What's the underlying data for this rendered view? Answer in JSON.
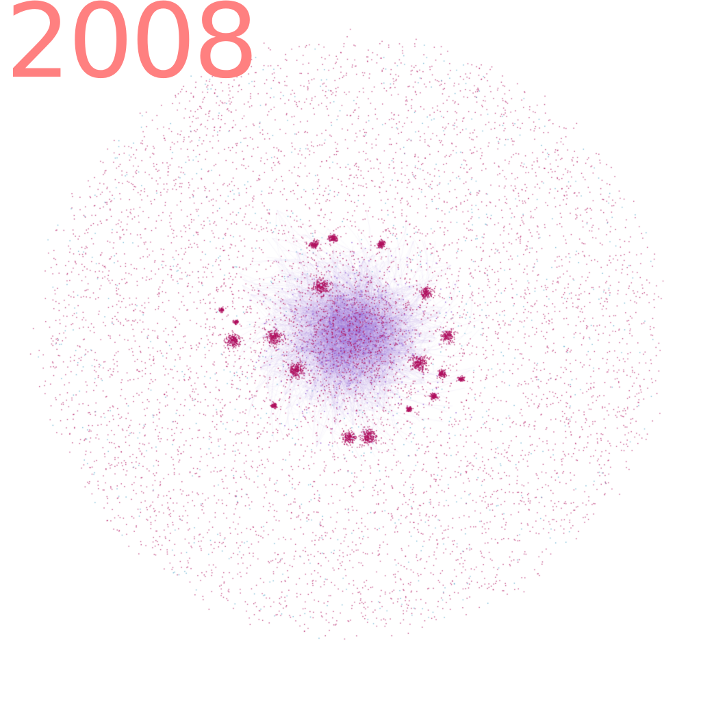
{
  "year_label": "2008",
  "colors": {
    "year_label": "#ff8080",
    "node_primary": "#b0105e",
    "node_secondary": "#4aa3c8",
    "edge": "#8a4fd0",
    "background": "#ffffff"
  },
  "chart_data": {
    "type": "network",
    "layout": "force-directed",
    "legend": "none",
    "grid": false
  }
}
